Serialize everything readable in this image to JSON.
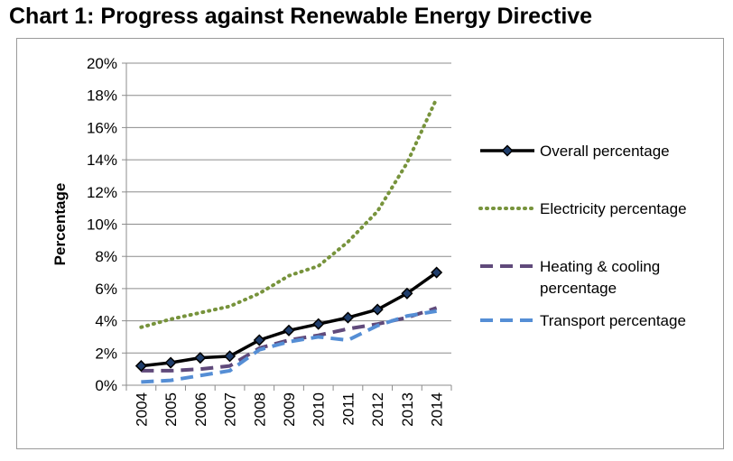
{
  "title": "Chart 1: Progress against Renewable Energy Directive",
  "chart_data": {
    "type": "line",
    "title": "Chart 1: Progress against Renewable Energy Directive",
    "xlabel": "",
    "ylabel": "Percentage",
    "categories": [
      "2004",
      "2005",
      "2006",
      "2007",
      "2008",
      "2009",
      "2010",
      "2011",
      "2012",
      "2013",
      "2014"
    ],
    "ylim": [
      0,
      20
    ],
    "y_ticks": [
      0,
      2,
      4,
      6,
      8,
      10,
      12,
      14,
      16,
      18,
      20
    ],
    "y_tick_labels": [
      "0%",
      "2%",
      "4%",
      "6%",
      "8%",
      "10%",
      "12%",
      "14%",
      "16%",
      "18%",
      "20%"
    ],
    "grid": true,
    "legend_position": "right",
    "series": [
      {
        "name": "Overall percentage",
        "values": [
          1.2,
          1.4,
          1.7,
          1.8,
          2.8,
          3.4,
          3.8,
          4.2,
          4.7,
          5.7,
          7.0
        ],
        "color": "#000000",
        "style": "solid-diamond"
      },
      {
        "name": "Electricity percentage",
        "values": [
          3.6,
          4.1,
          4.5,
          4.9,
          5.7,
          6.8,
          7.4,
          8.9,
          10.8,
          13.8,
          17.8
        ],
        "color": "#77933c",
        "style": "dotted"
      },
      {
        "name": "Heating & cooling percentage",
        "legend_lines": [
          "Heating & cooling",
          "percentage"
        ],
        "values": [
          0.9,
          0.9,
          1.0,
          1.2,
          2.3,
          2.8,
          3.1,
          3.5,
          3.8,
          4.2,
          4.8
        ],
        "color": "#604a7b",
        "style": "dashed"
      },
      {
        "name": "Transport percentage",
        "values": [
          0.2,
          0.3,
          0.6,
          0.9,
          2.2,
          2.7,
          3.0,
          2.8,
          3.7,
          4.3,
          4.6
        ],
        "color": "#558ed5",
        "style": "dashed"
      }
    ]
  }
}
